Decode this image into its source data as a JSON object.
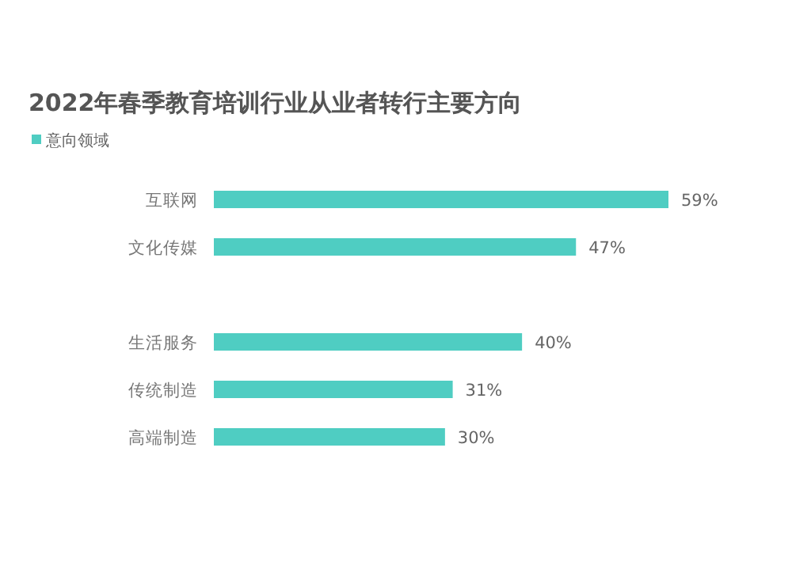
{
  "chart_data": {
    "type": "bar",
    "orientation": "horizontal",
    "title": "2022年春季教育培训行业从业者转行主要方向",
    "categories": [
      "互联网",
      "文化传媒",
      null,
      "生活服务",
      "传统制造",
      "高端制造"
    ],
    "series": [
      {
        "name": "意向领域",
        "color": "#4fcdc2",
        "values": [
          59,
          47,
          null,
          40,
          31,
          30
        ],
        "value_labels": [
          "59%",
          "47%",
          null,
          "40%",
          "31%",
          "30%"
        ]
      }
    ],
    "legend": "top left",
    "grid": false
  }
}
